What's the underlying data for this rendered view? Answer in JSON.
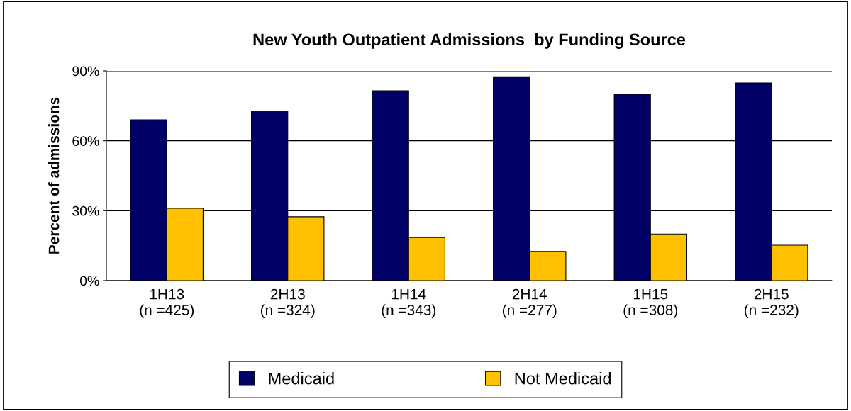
{
  "chart_data": {
    "type": "bar",
    "title": "New Youth Outpatient Admissions  by Funding Source",
    "ylabel": "Percent of admissions",
    "categories": [
      "1H13\n(n =425)",
      "2H13\n(n =324)",
      "1H14\n(n =343)",
      "2H14\n(n =277)",
      "1H15\n(n =308)",
      "2H15\n(n =232)"
    ],
    "series": [
      {
        "name": "Medicaid",
        "color": "#000066",
        "values": [
          69,
          72.6,
          81.5,
          87.5,
          80,
          84.8
        ]
      },
      {
        "name": "Not Medicaid",
        "color": "#ffc000",
        "values": [
          31,
          27.4,
          18.5,
          12.5,
          20,
          15.2
        ]
      }
    ],
    "ylim": [
      0,
      90
    ],
    "yticks": [
      {
        "value": 0,
        "label": "0%"
      },
      {
        "value": 30,
        "label": "30%"
      },
      {
        "value": 60,
        "label": "60%"
      },
      {
        "value": 90,
        "label": "90%"
      }
    ],
    "grid": "y",
    "legend": "bottom"
  }
}
